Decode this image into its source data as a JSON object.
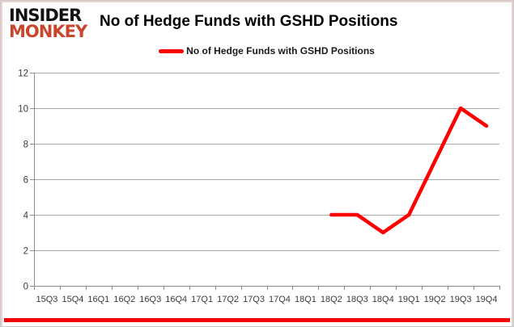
{
  "branding": {
    "logo_line1": "INSIDER",
    "logo_line2": "MONKEY",
    "logo_color": "#c8462e"
  },
  "header": {
    "title": "No of Hedge Funds with GSHD Positions"
  },
  "legend": {
    "label": "No of Hedge Funds with GSHD Positions",
    "swatch_color": "#ff0000"
  },
  "chart_data": {
    "type": "line",
    "title": "No of Hedge Funds with GSHD Positions",
    "categories": [
      "15Q3",
      "15Q4",
      "16Q1",
      "16Q2",
      "16Q3",
      "16Q4",
      "17Q1",
      "17Q2",
      "17Q3",
      "17Q4",
      "18Q1",
      "18Q2",
      "18Q3",
      "18Q4",
      "19Q1",
      "19Q2",
      "19Q3",
      "19Q4"
    ],
    "series": [
      {
        "name": "No of Hedge Funds with GSHD Positions",
        "color": "#ff0000",
        "values": [
          null,
          null,
          null,
          null,
          null,
          null,
          null,
          null,
          null,
          null,
          null,
          4,
          4,
          3,
          4,
          7,
          10,
          9
        ]
      }
    ],
    "ylim": [
      0,
      12
    ],
    "ytick_interval": 2,
    "xlabel": "",
    "ylabel": "",
    "grid": true,
    "legend_position": "top",
    "gridline_color": "#a8a8a8",
    "axis_color": "#8c8c8c",
    "tick_label_color": "#3a3a3a"
  },
  "decor": {
    "bottom_bar_color": "#f40000"
  }
}
